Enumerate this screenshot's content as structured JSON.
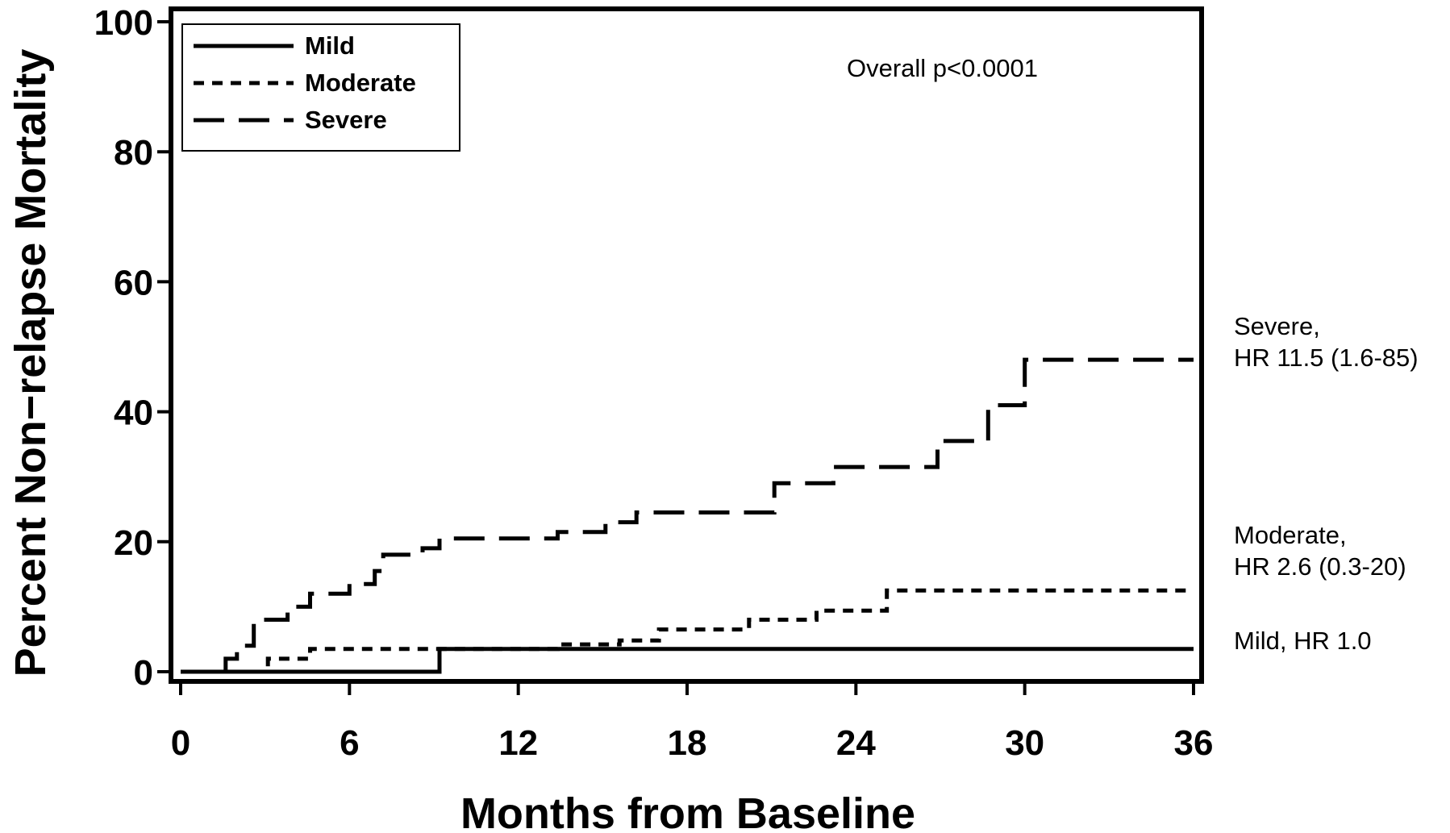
{
  "chart_data": {
    "type": "line",
    "step": true,
    "xlabel": "Months from Baseline",
    "ylabel": "Percent Non−relapse Mortality",
    "xlim": [
      0,
      36
    ],
    "ylim": [
      0,
      100
    ],
    "xticks": [
      0,
      6,
      12,
      18,
      24,
      30,
      36
    ],
    "yticks": [
      0,
      20,
      40,
      60,
      80,
      100
    ],
    "grid": false,
    "legend_position": "top-left",
    "annotation": "Overall p<0.0001",
    "series": [
      {
        "name": "Mild",
        "line_style": "solid",
        "label_lines": [
          "Mild, HR 1.0"
        ],
        "points": [
          [
            0,
            0
          ],
          [
            9.2,
            0
          ],
          [
            9.2,
            3.5
          ],
          [
            36,
            3.5
          ]
        ]
      },
      {
        "name": "Moderate",
        "line_style": "short-dash",
        "label_lines": [
          "Moderate,",
          "HR 2.6 (0.3-20)"
        ],
        "points": [
          [
            0,
            0
          ],
          [
            3.1,
            0
          ],
          [
            3.1,
            2
          ],
          [
            4.6,
            2
          ],
          [
            4.6,
            3.5
          ],
          [
            13.4,
            3.5
          ],
          [
            13.4,
            4.2
          ],
          [
            15.6,
            4.2
          ],
          [
            15.6,
            4.8
          ],
          [
            17.0,
            4.8
          ],
          [
            17.0,
            6.5
          ],
          [
            20.2,
            6.5
          ],
          [
            20.2,
            8
          ],
          [
            22.6,
            8
          ],
          [
            22.6,
            9.4
          ],
          [
            25.1,
            9.4
          ],
          [
            25.1,
            12.5
          ],
          [
            36,
            12.5
          ]
        ]
      },
      {
        "name": "Severe",
        "line_style": "long-dash",
        "label_lines": [
          "Severe,",
          "HR 11.5 (1.6-85)"
        ],
        "points": [
          [
            0,
            0
          ],
          [
            1.6,
            0
          ],
          [
            1.6,
            2
          ],
          [
            2.0,
            2
          ],
          [
            2.0,
            4
          ],
          [
            2.6,
            4
          ],
          [
            2.6,
            8
          ],
          [
            3.8,
            8
          ],
          [
            3.8,
            10
          ],
          [
            4.6,
            10
          ],
          [
            4.6,
            12
          ],
          [
            6.0,
            12
          ],
          [
            6.0,
            13.5
          ],
          [
            6.9,
            13.5
          ],
          [
            6.9,
            15.5
          ],
          [
            7.2,
            15.5
          ],
          [
            7.2,
            18
          ],
          [
            8.6,
            18
          ],
          [
            8.6,
            19
          ],
          [
            9.2,
            19
          ],
          [
            9.2,
            20.5
          ],
          [
            13.4,
            20.5
          ],
          [
            13.4,
            21.5
          ],
          [
            15.1,
            21.5
          ],
          [
            15.1,
            23
          ],
          [
            16.2,
            23
          ],
          [
            16.2,
            24.5
          ],
          [
            21.1,
            24.5
          ],
          [
            21.1,
            29
          ],
          [
            23.2,
            29
          ],
          [
            23.2,
            31.5
          ],
          [
            26.9,
            31.5
          ],
          [
            26.9,
            35.5
          ],
          [
            28.7,
            35.5
          ],
          [
            28.7,
            41
          ],
          [
            30.0,
            41
          ],
          [
            30.0,
            48
          ],
          [
            36,
            48
          ]
        ]
      }
    ]
  }
}
